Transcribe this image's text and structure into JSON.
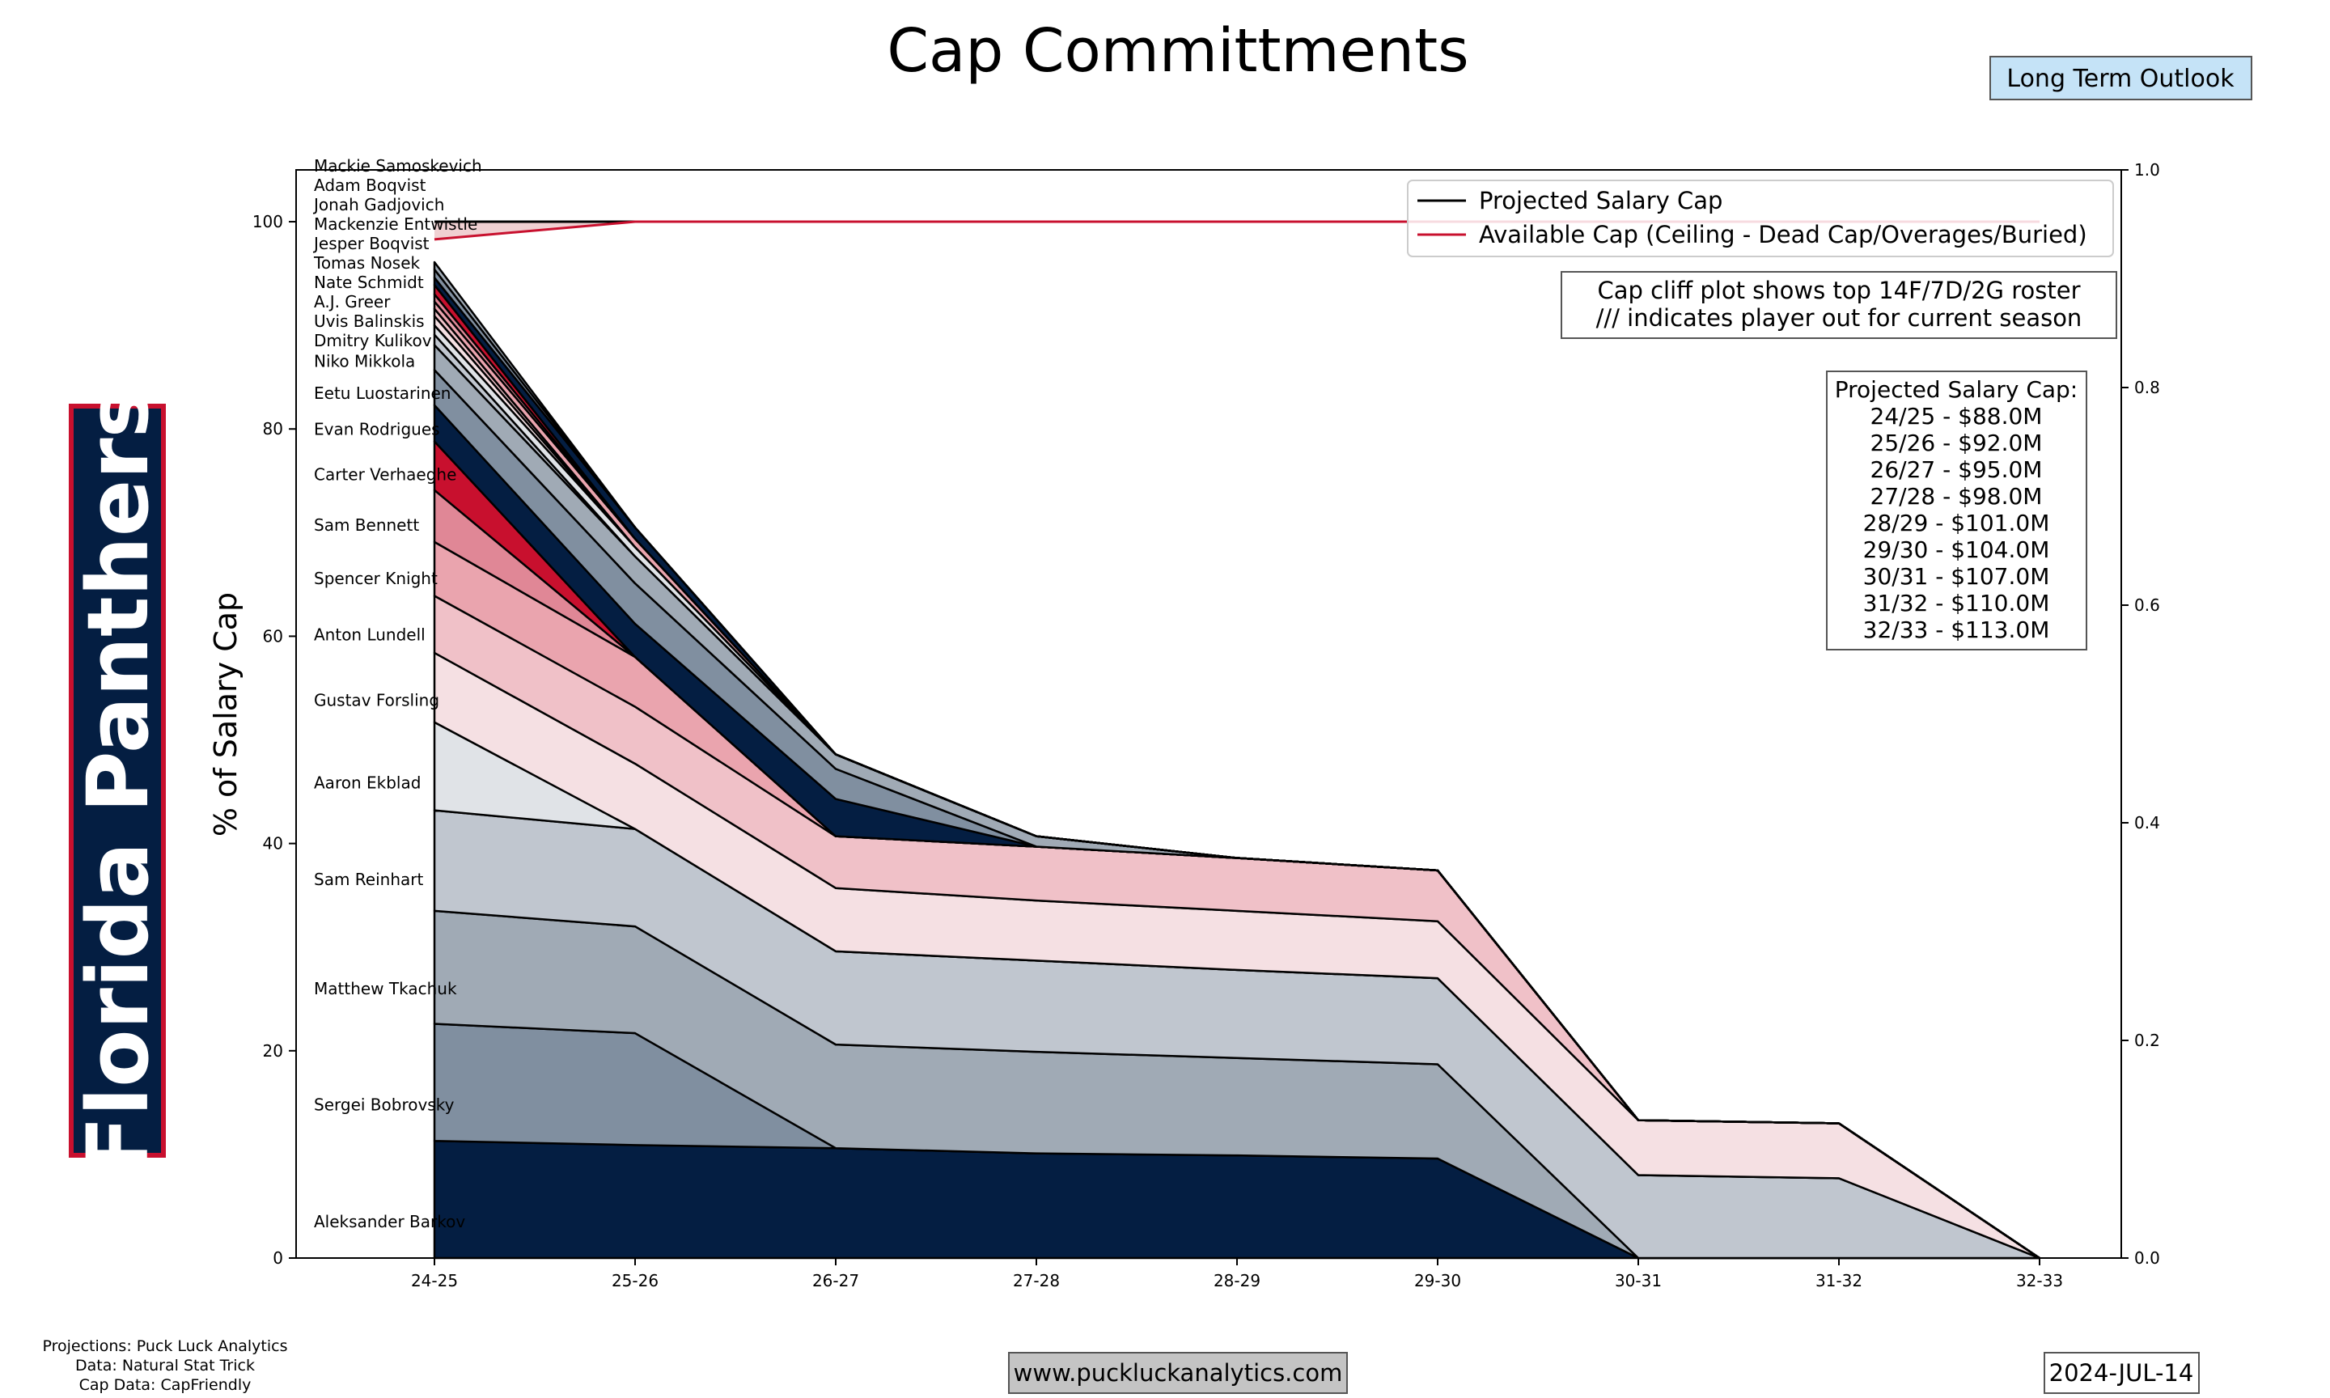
{
  "title": "Cap Committments",
  "team_banner": "Florida Panthers",
  "outlook_badge": "Long Term Outlook",
  "notes": [
    "Cap cliff plot shows top 14F/7D/2G roster",
    "/// indicates player out for current season"
  ],
  "cap_box": {
    "heading": "Projected Salary Cap:",
    "lines": [
      "24/25 - $88.0M",
      "25/26 - $92.0M",
      "26/27 - $95.0M",
      "27/28 - $98.0M",
      "28/29 - $101.0M",
      "29/30 - $104.0M",
      "30/31 - $107.0M",
      "31/32 - $110.0M",
      "32/33 - $113.0M"
    ]
  },
  "footer": {
    "sources": [
      "Projections: Puck Luck Analytics",
      "Data: Natural Stat Trick",
      "Cap Data: CapFriendly"
    ],
    "website": "www.puckluckanalytics.com",
    "date": "2024-JUL-14"
  },
  "chart_data": {
    "type": "area",
    "stacked": true,
    "ylabel": "% of Salary Cap",
    "xlabel": "",
    "categories": [
      "24-25",
      "25-26",
      "26-27",
      "27-28",
      "28-29",
      "29-30",
      "30-31",
      "31-32",
      "32-33"
    ],
    "ylim": [
      0,
      105
    ],
    "yticks": [
      0,
      20,
      40,
      60,
      80,
      100
    ],
    "y2lim": [
      0,
      1.0
    ],
    "y2ticks": [
      "0.0",
      "0.2",
      "0.4",
      "0.6",
      "0.8",
      "1.0"
    ],
    "legend": {
      "placement": "top-right",
      "entries": [
        {
          "name": "Projected Salary Cap",
          "color": "#000000"
        },
        {
          "name": "Available Cap (Ceiling - Dead Cap/Overages/Buried)",
          "color": "#C8102E"
        }
      ]
    },
    "projected_cap": [
      100,
      100,
      100,
      100,
      100,
      100,
      100,
      100,
      100
    ],
    "available_cap": [
      98.3,
      100,
      100,
      100,
      100,
      100,
      100,
      100,
      100
    ],
    "available_fill_color": "#F0D0D2",
    "series": [
      {
        "name": "Aleksander Barkov",
        "color": "#041E42",
        "values": [
          11.3,
          10.9,
          10.6,
          10.1,
          9.9,
          9.6,
          0,
          0,
          0
        ]
      },
      {
        "name": "Sergei Bobrovsky",
        "color": "#808FA0",
        "values": [
          11.3,
          10.8,
          0,
          0,
          0,
          0,
          0,
          0,
          0
        ]
      },
      {
        "name": "Matthew Tkachuk",
        "color": "#A0AAB5",
        "values": [
          10.9,
          10.3,
          10.0,
          9.8,
          9.4,
          9.1,
          0,
          0,
          0
        ]
      },
      {
        "name": "Sam Reinhart",
        "color": "#C0C6CF",
        "values": [
          9.7,
          9.4,
          9.0,
          8.8,
          8.5,
          8.3,
          8.0,
          7.7,
          0
        ]
      },
      {
        "name": "Aaron Ekblad",
        "color": "#E0E3E7",
        "values": [
          8.5,
          0,
          0,
          0,
          0,
          0,
          0,
          0,
          0
        ]
      },
      {
        "name": "Gustav Forsling",
        "color": "#F5E0E3",
        "values": [
          6.7,
          6.3,
          6.1,
          5.8,
          5.7,
          5.5,
          5.3,
          5.3,
          0
        ]
      },
      {
        "name": "Anton Lundell",
        "color": "#F0C1C8",
        "values": [
          5.5,
          5.5,
          5.0,
          5.2,
          5.1,
          4.9,
          0,
          0,
          0
        ]
      },
      {
        "name": "Spencer Knight",
        "color": "#EAA4AE",
        "values": [
          5.2,
          4.8,
          0,
          0,
          0,
          0,
          0,
          0,
          0
        ]
      },
      {
        "name": "Sam Bennett",
        "color": "#E08796",
        "values": [
          5.0,
          0,
          0,
          0,
          0,
          0,
          0,
          0,
          0
        ]
      },
      {
        "name": "Carter Verhaeghe",
        "color": "#C8102E",
        "values": [
          4.7,
          0,
          0,
          0,
          0,
          0,
          0,
          0,
          0
        ]
      },
      {
        "name": "Evan Rodrigues",
        "color": "#041E42",
        "values": [
          3.5,
          3.2,
          3.6,
          0,
          0,
          0,
          0,
          0,
          0
        ]
      },
      {
        "name": "Eetu Luostarinen",
        "color": "#808FA0",
        "values": [
          3.4,
          3.9,
          2.9,
          0,
          0,
          0,
          0,
          0,
          0
        ]
      },
      {
        "name": "Niko Mikkola",
        "color": "#A0AAB5",
        "values": [
          2.4,
          2.6,
          1.4,
          1.0,
          0,
          0,
          0,
          0,
          0
        ]
      },
      {
        "name": "Dmitry Kulikov",
        "color": "#C0C6CF",
        "values": [
          1.0,
          0,
          0,
          0,
          0,
          0,
          0,
          0,
          0
        ]
      },
      {
        "name": "Uvis Balinskis",
        "color": "#E0E3E7",
        "values": [
          0.9,
          0.9,
          0,
          0,
          0,
          0,
          0,
          0,
          0
        ]
      },
      {
        "name": "A.J. Greer",
        "color": "#F5E0E3",
        "values": [
          0.9,
          0,
          0,
          0,
          0,
          0,
          0,
          0,
          0
        ]
      },
      {
        "name": "Nate Schmidt",
        "color": "#F0C1C8",
        "values": [
          0.7,
          0,
          0,
          0,
          0,
          0,
          0,
          0,
          0
        ]
      },
      {
        "name": "Tomas Nosek",
        "color": "#EAA4AE",
        "values": [
          0.7,
          0.8,
          0,
          0,
          0,
          0,
          0,
          0,
          0
        ]
      },
      {
        "name": "Jesper Boqvist",
        "color": "#E08796",
        "values": [
          0.7,
          0,
          0,
          0,
          0,
          0,
          0,
          0,
          0
        ]
      },
      {
        "name": "Mackenzie Entwistle",
        "color": "#C8102E",
        "values": [
          0.9,
          0,
          0,
          0,
          0,
          0,
          0,
          0,
          0
        ]
      },
      {
        "name": "Jonah Gadjovich",
        "color": "#041E42",
        "values": [
          0.7,
          1.1,
          0,
          0,
          0,
          0,
          0,
          0,
          0
        ]
      },
      {
        "name": "Adam Boqvist",
        "color": "#808FA0",
        "values": [
          0.8,
          0,
          0,
          0,
          0,
          0,
          0,
          0,
          0
        ]
      },
      {
        "name": "Mackie Samoskevich",
        "color": "#A0AAB5",
        "values": [
          0.7,
          0,
          0,
          0,
          0,
          0,
          0,
          0,
          0
        ]
      }
    ]
  }
}
